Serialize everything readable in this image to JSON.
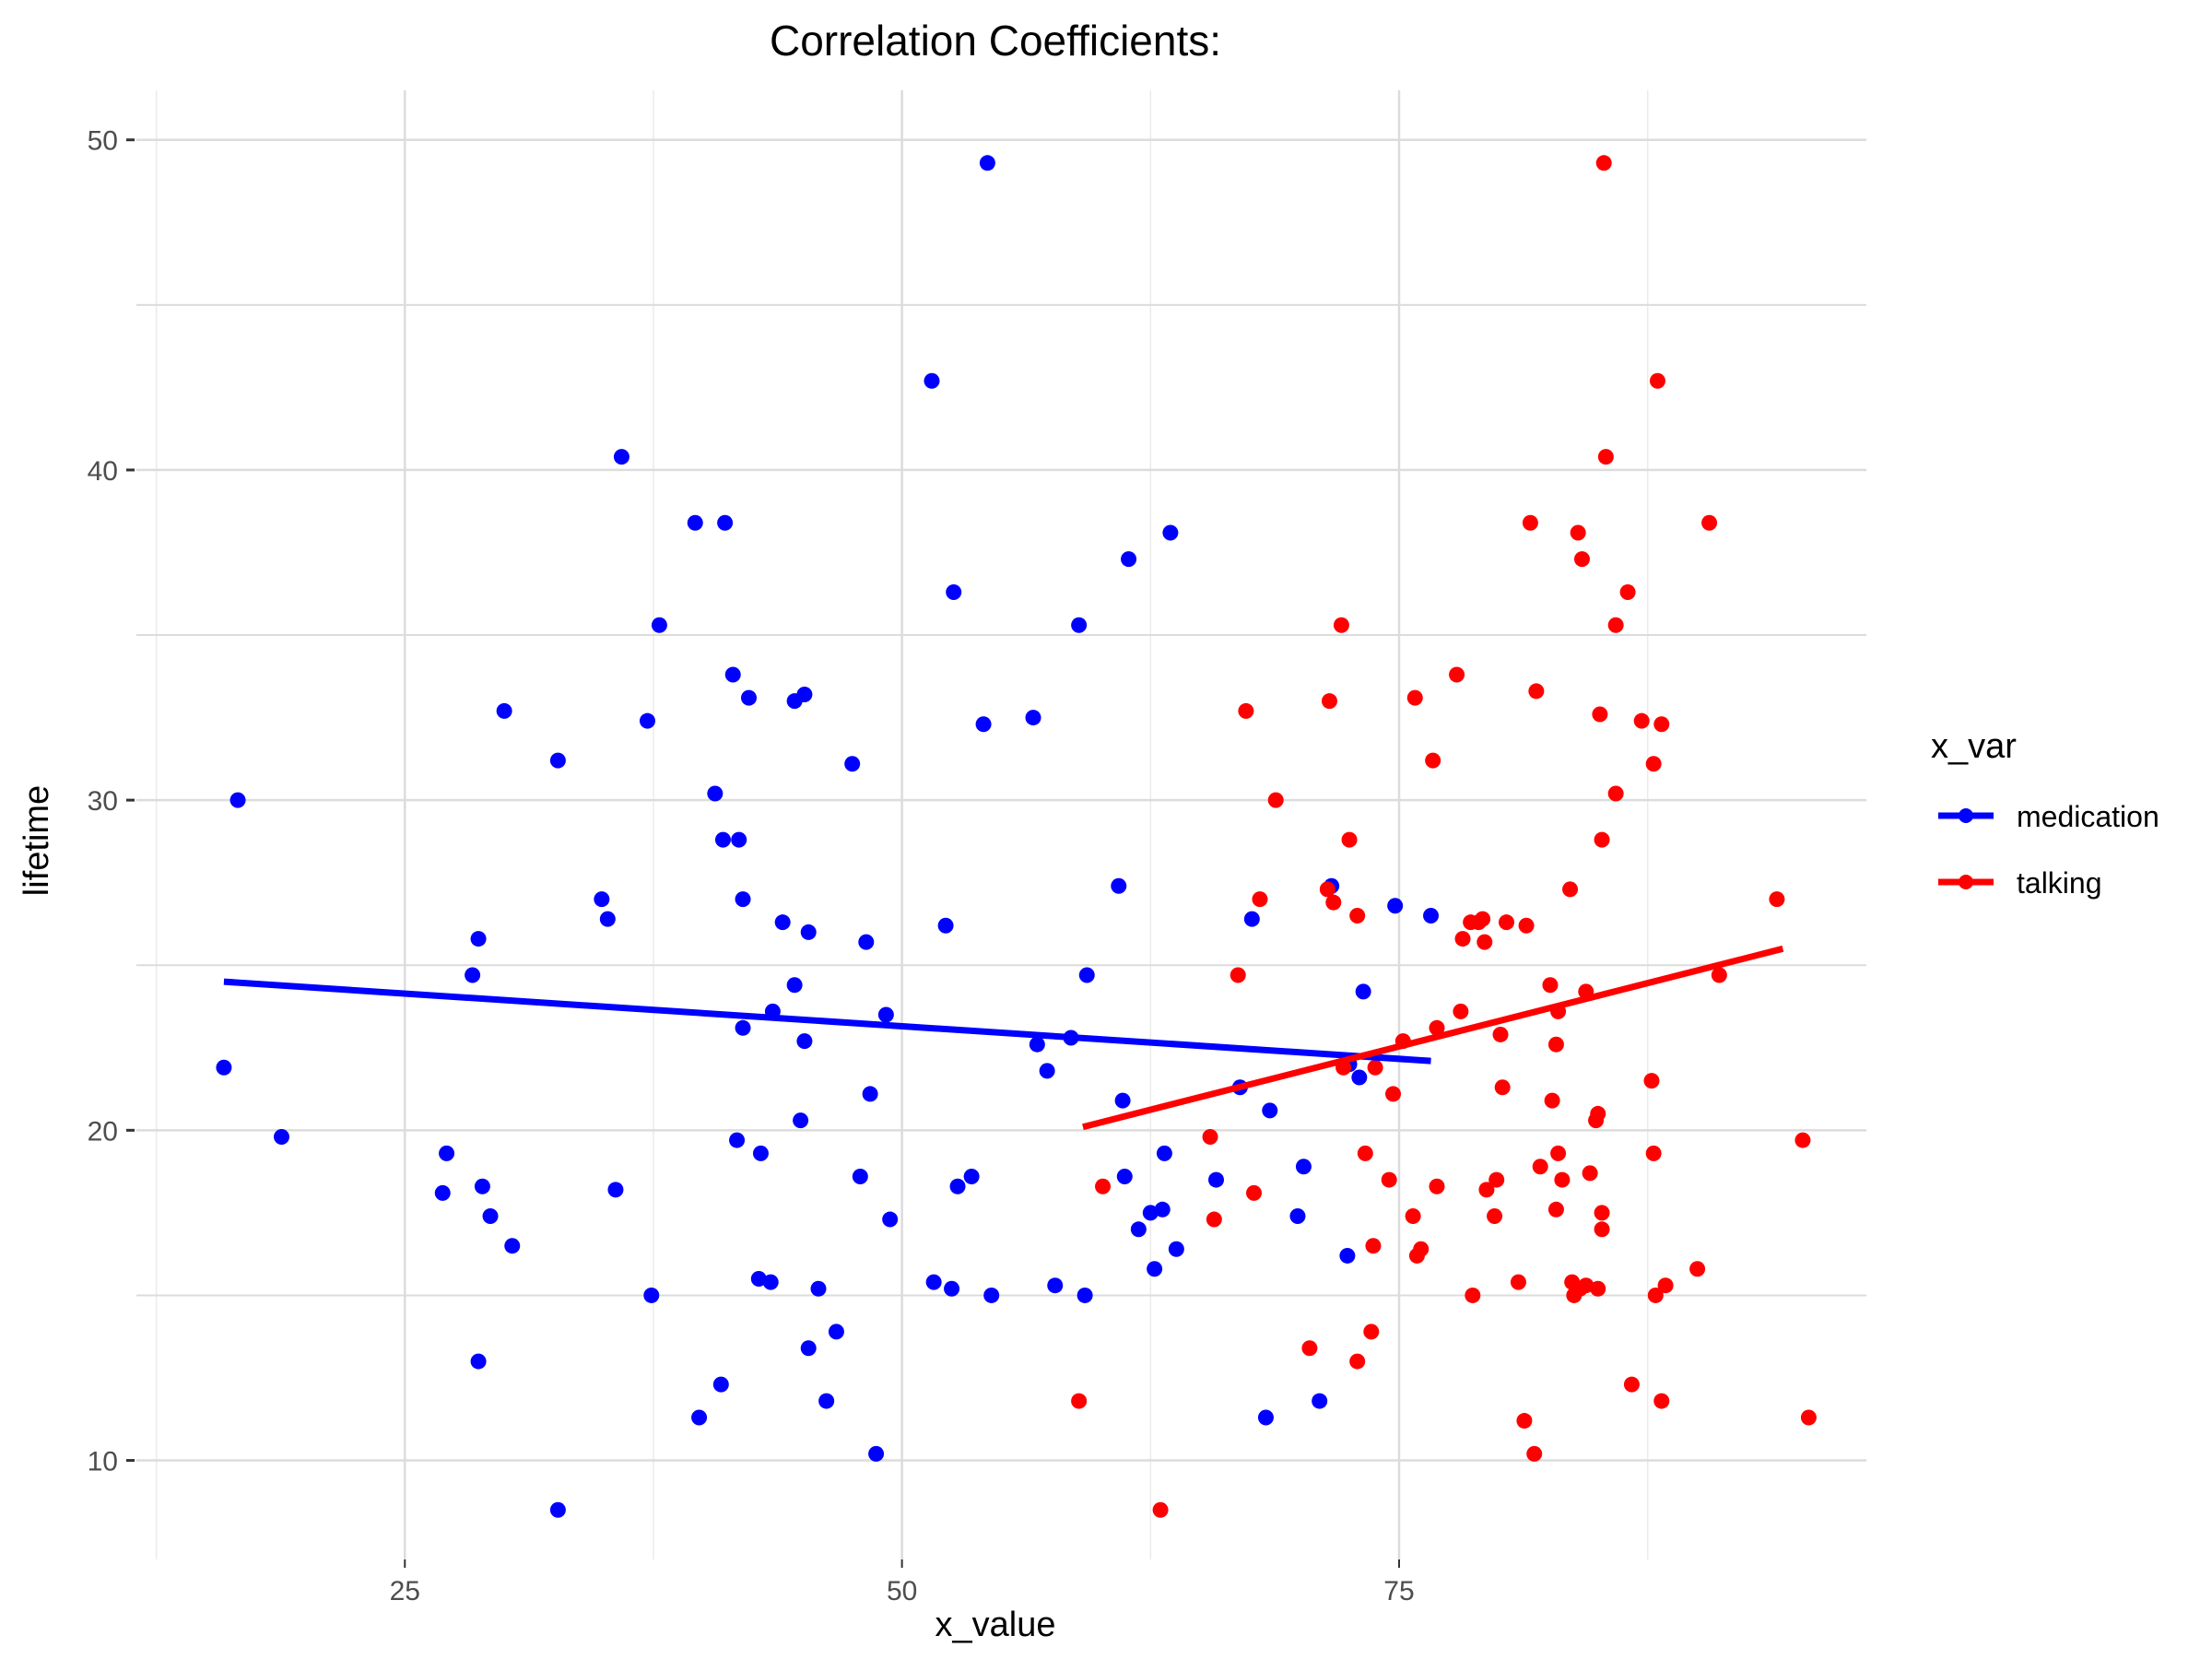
{
  "chart_data": {
    "type": "scatter",
    "title": "Correlation Coefficients:",
    "xlabel": "x_value",
    "ylabel": "lifetime",
    "xlim": [
      11.5,
      98.5
    ],
    "ylim": [
      7,
      51.5
    ],
    "x_ticks": [
      25,
      50,
      75
    ],
    "y_ticks": [
      10,
      20,
      30,
      40,
      50
    ],
    "grid": true,
    "legend": {
      "title": "x_var",
      "position": "right"
    },
    "series": [
      {
        "name": "medication",
        "color": "#0000ff",
        "trend": [
          [
            15.9,
            24.5
          ],
          [
            76.6,
            22.1
          ]
        ],
        "points": [
          [
            16.6,
            30.0
          ],
          [
            15.9,
            21.9
          ],
          [
            18.8,
            19.8
          ],
          [
            27.1,
            19.3
          ],
          [
            26.9,
            18.1
          ],
          [
            28.4,
            24.7
          ],
          [
            28.7,
            25.8
          ],
          [
            28.9,
            18.3
          ],
          [
            28.7,
            13.0
          ],
          [
            29.3,
            17.4
          ],
          [
            30.0,
            32.7
          ],
          [
            30.4,
            16.5
          ],
          [
            32.7,
            31.2
          ],
          [
            32.7,
            8.5
          ],
          [
            34.9,
            27.0
          ],
          [
            35.2,
            26.4
          ],
          [
            35.6,
            18.2
          ],
          [
            35.9,
            40.4
          ],
          [
            37.2,
            32.4
          ],
          [
            37.4,
            15.0
          ],
          [
            37.8,
            35.3
          ],
          [
            39.6,
            38.4
          ],
          [
            39.8,
            11.3
          ],
          [
            40.6,
            30.2
          ],
          [
            41.0,
            28.8
          ],
          [
            41.1,
            38.4
          ],
          [
            40.9,
            12.3
          ],
          [
            41.5,
            33.8
          ],
          [
            41.7,
            19.7
          ],
          [
            41.8,
            28.8
          ],
          [
            42.0,
            27.0
          ],
          [
            42.0,
            23.1
          ],
          [
            42.3,
            33.1
          ],
          [
            42.8,
            15.5
          ],
          [
            42.9,
            19.3
          ],
          [
            43.4,
            15.4
          ],
          [
            43.5,
            23.6
          ],
          [
            44.0,
            26.3
          ],
          [
            44.6,
            33.0
          ],
          [
            44.6,
            24.4
          ],
          [
            44.9,
            20.3
          ],
          [
            45.1,
            33.2
          ],
          [
            45.1,
            22.7
          ],
          [
            45.3,
            13.4
          ],
          [
            45.3,
            26.0
          ],
          [
            45.8,
            15.2
          ],
          [
            46.2,
            11.8
          ],
          [
            46.7,
            13.9
          ],
          [
            47.5,
            31.1
          ],
          [
            47.9,
            18.6
          ],
          [
            48.2,
            25.7
          ],
          [
            48.4,
            21.1
          ],
          [
            48.7,
            10.2
          ],
          [
            49.2,
            23.5
          ],
          [
            49.4,
            17.3
          ],
          [
            51.5,
            42.7
          ],
          [
            51.6,
            15.4
          ],
          [
            52.2,
            26.2
          ],
          [
            52.5,
            15.2
          ],
          [
            52.6,
            36.3
          ],
          [
            52.8,
            18.3
          ],
          [
            53.5,
            18.6
          ],
          [
            54.1,
            32.3
          ],
          [
            54.3,
            49.3
          ],
          [
            54.5,
            15.0
          ],
          [
            56.6,
            32.5
          ],
          [
            56.8,
            22.6
          ],
          [
            57.3,
            21.8
          ],
          [
            57.7,
            15.3
          ],
          [
            58.5,
            22.8
          ],
          [
            58.9,
            35.3
          ],
          [
            59.2,
            15.0
          ],
          [
            59.3,
            24.7
          ],
          [
            60.9,
            27.4
          ],
          [
            61.1,
            20.9
          ],
          [
            61.2,
            18.6
          ],
          [
            61.4,
            37.3
          ],
          [
            61.9,
            17.0
          ],
          [
            62.5,
            17.5
          ],
          [
            62.7,
            15.8
          ],
          [
            63.1,
            17.6
          ],
          [
            63.2,
            19.3
          ],
          [
            63.5,
            38.1
          ],
          [
            63.8,
            16.4
          ],
          [
            65.8,
            18.5
          ],
          [
            67.0,
            21.3
          ],
          [
            67.6,
            26.4
          ],
          [
            68.3,
            11.3
          ],
          [
            68.5,
            20.6
          ],
          [
            69.9,
            17.4
          ],
          [
            70.2,
            18.9
          ],
          [
            71.0,
            11.8
          ],
          [
            71.6,
            27.4
          ],
          [
            72.4,
            16.2
          ],
          [
            72.5,
            22.0
          ],
          [
            73.0,
            21.6
          ],
          [
            73.2,
            24.2
          ],
          [
            74.8,
            26.8
          ],
          [
            76.6,
            26.5
          ]
        ]
      },
      {
        "name": "talking",
        "color": "#ff0000",
        "trend": [
          [
            59.1,
            20.1
          ],
          [
            94.3,
            25.5
          ]
        ],
        "points": [
          [
            58.9,
            11.8
          ],
          [
            60.1,
            18.3
          ],
          [
            63.0,
            8.5
          ],
          [
            65.5,
            19.8
          ],
          [
            65.7,
            17.3
          ],
          [
            66.9,
            24.7
          ],
          [
            67.3,
            32.7
          ],
          [
            67.7,
            18.1
          ],
          [
            68.0,
            27.0
          ],
          [
            68.8,
            30.0
          ],
          [
            70.5,
            13.4
          ],
          [
            71.4,
            27.3
          ],
          [
            71.5,
            33.0
          ],
          [
            71.7,
            26.9
          ],
          [
            72.1,
            35.3
          ],
          [
            72.2,
            21.9
          ],
          [
            72.5,
            28.8
          ],
          [
            72.9,
            13.0
          ],
          [
            72.9,
            26.5
          ],
          [
            73.3,
            19.3
          ],
          [
            73.6,
            13.9
          ],
          [
            73.7,
            16.5
          ],
          [
            73.8,
            21.9
          ],
          [
            74.5,
            18.5
          ],
          [
            74.7,
            21.1
          ],
          [
            75.2,
            22.7
          ],
          [
            75.7,
            17.4
          ],
          [
            75.8,
            33.1
          ],
          [
            75.9,
            16.2
          ],
          [
            76.1,
            16.4
          ],
          [
            76.7,
            31.2
          ],
          [
            76.9,
            23.1
          ],
          [
            76.9,
            18.3
          ],
          [
            77.9,
            33.8
          ],
          [
            78.1,
            23.6
          ],
          [
            78.2,
            25.8
          ],
          [
            78.6,
            26.3
          ],
          [
            78.7,
            15.0
          ],
          [
            79.0,
            26.3
          ],
          [
            79.2,
            26.4
          ],
          [
            79.3,
            25.7
          ],
          [
            79.4,
            18.2
          ],
          [
            79.8,
            17.4
          ],
          [
            79.9,
            18.5
          ],
          [
            80.1,
            22.9
          ],
          [
            80.2,
            21.3
          ],
          [
            80.4,
            26.3
          ],
          [
            81.0,
            15.4
          ],
          [
            81.4,
            26.2
          ],
          [
            81.6,
            38.4
          ],
          [
            81.3,
            11.2
          ],
          [
            81.8,
            10.2
          ],
          [
            81.9,
            33.3
          ],
          [
            82.1,
            18.9
          ],
          [
            82.6,
            24.4
          ],
          [
            82.7,
            20.9
          ],
          [
            82.9,
            22.6
          ],
          [
            82.9,
            17.6
          ],
          [
            83.0,
            19.3
          ],
          [
            83.0,
            23.6
          ],
          [
            83.2,
            18.5
          ],
          [
            83.6,
            27.3
          ],
          [
            83.7,
            15.4
          ],
          [
            83.8,
            15.0
          ],
          [
            84.0,
            38.1
          ],
          [
            84.1,
            15.2
          ],
          [
            84.2,
            37.3
          ],
          [
            84.4,
            24.2
          ],
          [
            84.4,
            15.3
          ],
          [
            84.6,
            18.7
          ],
          [
            84.9,
            20.3
          ],
          [
            85.0,
            15.2
          ],
          [
            85.0,
            20.5
          ],
          [
            85.1,
            32.6
          ],
          [
            85.2,
            28.8
          ],
          [
            85.2,
            17.5
          ],
          [
            85.2,
            17.0
          ],
          [
            85.3,
            49.3
          ],
          [
            85.4,
            40.4
          ],
          [
            85.9,
            30.2
          ],
          [
            85.9,
            35.3
          ],
          [
            86.5,
            36.3
          ],
          [
            86.7,
            12.3
          ],
          [
            87.2,
            32.4
          ],
          [
            87.7,
            21.5
          ],
          [
            87.8,
            31.1
          ],
          [
            87.8,
            19.3
          ],
          [
            87.9,
            15.0
          ],
          [
            88.0,
            42.7
          ],
          [
            88.2,
            32.3
          ],
          [
            88.2,
            11.8
          ],
          [
            88.4,
            15.3
          ],
          [
            90.0,
            15.8
          ],
          [
            90.6,
            38.4
          ],
          [
            91.1,
            24.7
          ],
          [
            94.0,
            27.0
          ],
          [
            95.3,
            19.7
          ],
          [
            95.6,
            11.3
          ]
        ]
      }
    ]
  }
}
